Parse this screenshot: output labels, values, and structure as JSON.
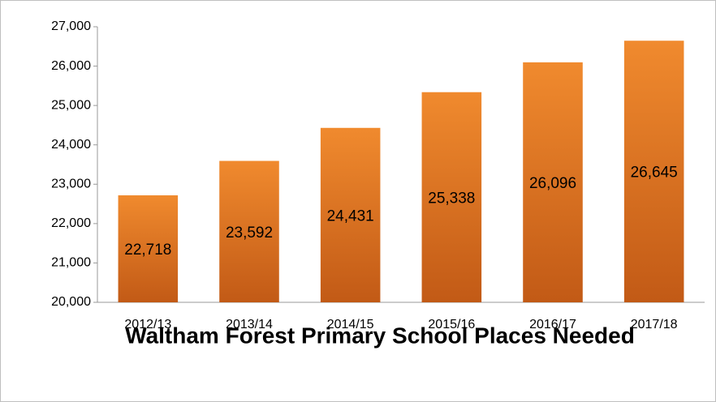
{
  "chart_data": {
    "type": "bar",
    "title": "Waltham Forest Primary School Places Needed",
    "categories": [
      "2012/13",
      "2013/14",
      "2014/15",
      "2015/16",
      "2016/17",
      "2017/18"
    ],
    "values": [
      22718,
      23592,
      24431,
      25338,
      26096,
      26645
    ],
    "value_labels": [
      "22,718",
      "23,592",
      "24,431",
      "25,338",
      "26,096",
      "26,645"
    ],
    "color": "#f08a2e",
    "ylim": [
      20000,
      27000
    ],
    "yticks": [
      {
        "value": 20000,
        "label": "20,000"
      },
      {
        "value": 21000,
        "label": "21,000"
      },
      {
        "value": 22000,
        "label": "22,000"
      },
      {
        "value": 23000,
        "label": "23,000"
      },
      {
        "value": 24000,
        "label": "24,000"
      },
      {
        "value": 25000,
        "label": "25,000"
      },
      {
        "value": 26000,
        "label": "26,000"
      },
      {
        "value": 27000,
        "label": "27,000"
      }
    ],
    "grid": false
  }
}
